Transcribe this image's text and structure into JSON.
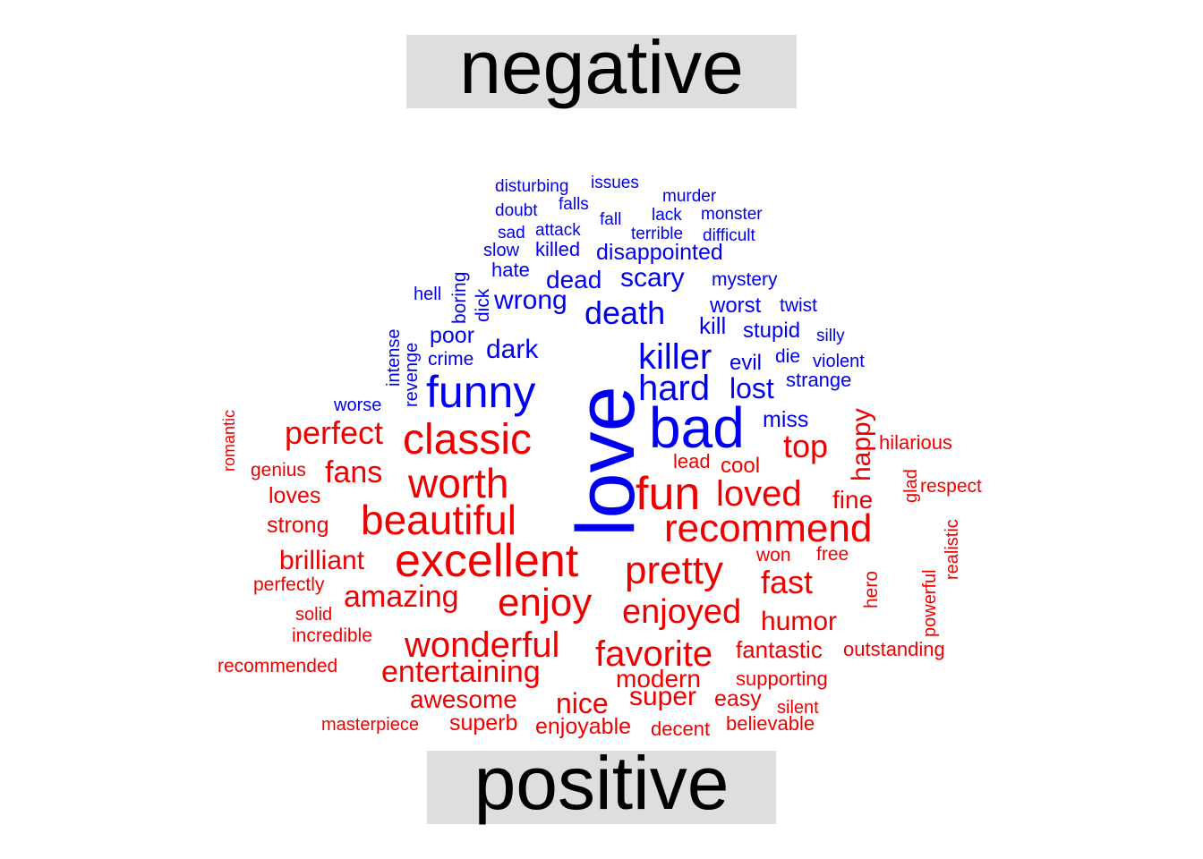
{
  "colors": {
    "negative": "#0000ee",
    "positive": "#ee0000",
    "header_bg": "#dedede"
  },
  "headers": {
    "negative": "negative",
    "positive": "positive"
  },
  "words": {
    "negative": [
      "disturbing",
      "issues",
      "murder",
      "falls",
      "doubt",
      "lack",
      "monster",
      "fall",
      "sad",
      "attack",
      "terrible",
      "difficult",
      "slow",
      "killed",
      "disappointed",
      "hate",
      "boring",
      "dick",
      "dead",
      "scary",
      "mystery",
      "hell",
      "wrong",
      "worst",
      "twist",
      "death",
      "intense",
      "revenge",
      "poor",
      "kill",
      "stupid",
      "silly",
      "dark",
      "crime",
      "die",
      "evil",
      "violent",
      "killer",
      "love",
      "hard",
      "lost",
      "strange",
      "worse",
      "funny",
      "bad",
      "miss"
    ],
    "positive": [
      "romantic",
      "perfect",
      "classic",
      "top",
      "hilarious",
      "happy",
      "genius",
      "fans",
      "lead",
      "cool",
      "glad",
      "loves",
      "worth",
      "fun",
      "loved",
      "respect",
      "fine",
      "strong",
      "beautiful",
      "recommend",
      "realistic",
      "brilliant",
      "won",
      "free",
      "excellent",
      "pretty",
      "fast",
      "hero",
      "perfectly",
      "powerful",
      "amazing",
      "solid",
      "enjoy",
      "enjoyed",
      "humor",
      "incredible",
      "wonderful",
      "favorite",
      "fantastic",
      "outstanding",
      "recommended",
      "entertaining",
      "modern",
      "supporting",
      "awesome",
      "nice",
      "super",
      "easy",
      "silent",
      "masterpiece",
      "superb",
      "enjoyable",
      "decent",
      "believable"
    ]
  }
}
